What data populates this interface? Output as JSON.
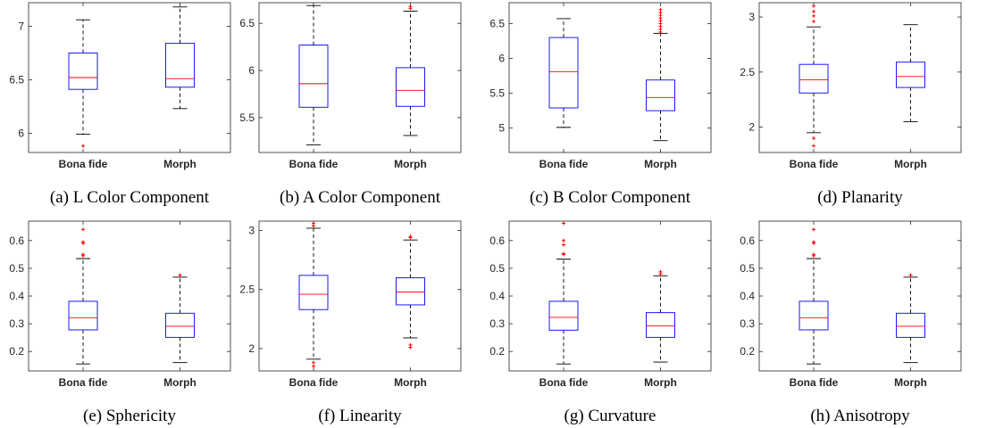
{
  "chart_data": [
    {
      "type": "box",
      "caption": "(a) L Color Component",
      "categories": [
        "Bona fide",
        "Morph"
      ],
      "ylim": [
        5.82,
        7.22
      ],
      "yticks": [
        6,
        6.5,
        7
      ],
      "ytick_labels": [
        "6",
        "6.5",
        "7"
      ],
      "boxes": [
        {
          "whisker_low": 5.99,
          "q1": 6.41,
          "median": 6.52,
          "q3": 6.75,
          "whisker_high": 7.06,
          "outliers": [
            5.88
          ]
        },
        {
          "whisker_low": 6.23,
          "q1": 6.43,
          "median": 6.51,
          "q3": 6.84,
          "whisker_high": 7.18,
          "outliers": []
        }
      ]
    },
    {
      "type": "box",
      "caption": "(b) A Color Component",
      "categories": [
        "Bona fide",
        "Morph"
      ],
      "ylim": [
        5.13,
        6.72
      ],
      "yticks": [
        5.5,
        6,
        6.5
      ],
      "ytick_labels": [
        "5.5",
        "6",
        "6.5"
      ],
      "boxes": [
        {
          "whisker_low": 5.21,
          "q1": 5.61,
          "median": 5.86,
          "q3": 6.27,
          "whisker_high": 6.69,
          "outliers": []
        },
        {
          "whisker_low": 5.31,
          "q1": 5.62,
          "median": 5.79,
          "q3": 6.03,
          "whisker_high": 6.63,
          "outliers": [
            6.66,
            6.68
          ]
        }
      ]
    },
    {
      "type": "box",
      "caption": "(c) B Color Component",
      "categories": [
        "Bona fide",
        "Morph"
      ],
      "ylim": [
        4.65,
        6.8
      ],
      "yticks": [
        5,
        5.5,
        6,
        6.5
      ],
      "ytick_labels": [
        "5",
        "5.5",
        "6",
        "6.5"
      ],
      "boxes": [
        {
          "whisker_low": 5.01,
          "q1": 5.29,
          "median": 5.81,
          "q3": 6.3,
          "whisker_high": 6.57,
          "outliers": []
        },
        {
          "whisker_low": 4.82,
          "q1": 5.25,
          "median": 5.44,
          "q3": 5.69,
          "whisker_high": 6.36,
          "outliers": [
            6.38,
            6.42,
            6.46,
            6.5,
            6.54,
            6.58,
            6.62,
            6.66,
            6.7
          ]
        }
      ]
    },
    {
      "type": "box",
      "caption": "(d) Planarity",
      "categories": [
        "Bona fide",
        "Morph"
      ],
      "ylim": [
        1.77,
        3.13
      ],
      "yticks": [
        2,
        2.5,
        3
      ],
      "ytick_labels": [
        "2",
        "2.5",
        "3"
      ],
      "boxes": [
        {
          "whisker_low": 1.95,
          "q1": 2.31,
          "median": 2.43,
          "q3": 2.57,
          "whisker_high": 2.91,
          "outliers": [
            1.83,
            1.9,
            2.96,
            3.01,
            3.05,
            3.1
          ]
        },
        {
          "whisker_low": 2.05,
          "q1": 2.36,
          "median": 2.46,
          "q3": 2.59,
          "whisker_high": 2.93,
          "outliers": []
        }
      ]
    },
    {
      "type": "box",
      "caption": "(e) Sphericity",
      "categories": [
        "Bona fide",
        "Morph"
      ],
      "ylim": [
        0.13,
        0.67
      ],
      "yticks": [
        0.2,
        0.3,
        0.4,
        0.5,
        0.6
      ],
      "ytick_labels": [
        "0.2",
        "0.3",
        "0.4",
        "0.5",
        "0.6"
      ],
      "boxes": [
        {
          "whisker_low": 0.155,
          "q1": 0.278,
          "median": 0.322,
          "q3": 0.381,
          "whisker_high": 0.535,
          "outliers": [
            0.545,
            0.55,
            0.59,
            0.595,
            0.64
          ]
        },
        {
          "whisker_low": 0.16,
          "q1": 0.251,
          "median": 0.291,
          "q3": 0.338,
          "whisker_high": 0.468,
          "outliers": [
            0.475
          ]
        }
      ]
    },
    {
      "type": "box",
      "caption": "(f) Linearity",
      "categories": [
        "Bona fide",
        "Morph"
      ],
      "ylim": [
        1.81,
        3.08
      ],
      "yticks": [
        2,
        2.5,
        3
      ],
      "ytick_labels": [
        "2",
        "2.5",
        "3"
      ],
      "boxes": [
        {
          "whisker_low": 1.91,
          "q1": 2.33,
          "median": 2.46,
          "q3": 2.62,
          "whisker_high": 3.02,
          "outliers": [
            1.85,
            1.88,
            3.04,
            3.06
          ]
        },
        {
          "whisker_low": 2.09,
          "q1": 2.37,
          "median": 2.48,
          "q3": 2.6,
          "whisker_high": 2.92,
          "outliers": [
            2.01,
            2.03,
            2.94,
            2.95
          ]
        }
      ]
    },
    {
      "type": "box",
      "caption": "(g) Curvature",
      "categories": [
        "Bona fide",
        "Morph"
      ],
      "ylim": [
        0.13,
        0.67
      ],
      "yticks": [
        0.2,
        0.3,
        0.4,
        0.5,
        0.6
      ],
      "ytick_labels": [
        "0.2",
        "0.3",
        "0.4",
        "0.5",
        "0.6"
      ],
      "boxes": [
        {
          "whisker_low": 0.155,
          "q1": 0.277,
          "median": 0.323,
          "q3": 0.381,
          "whisker_high": 0.533,
          "outliers": [
            0.55,
            0.553,
            0.585,
            0.6,
            0.662
          ]
        },
        {
          "whisker_low": 0.162,
          "q1": 0.251,
          "median": 0.292,
          "q3": 0.34,
          "whisker_high": 0.473,
          "outliers": [
            0.48,
            0.487
          ]
        }
      ]
    },
    {
      "type": "box",
      "caption": "(h) Anisotropy",
      "categories": [
        "Bona fide",
        "Morph"
      ],
      "ylim": [
        0.13,
        0.67
      ],
      "yticks": [
        0.2,
        0.3,
        0.4,
        0.5,
        0.6
      ],
      "ytick_labels": [
        "0.2",
        "0.3",
        "0.4",
        "0.5",
        "0.6"
      ],
      "boxes": [
        {
          "whisker_low": 0.155,
          "q1": 0.278,
          "median": 0.322,
          "q3": 0.381,
          "whisker_high": 0.535,
          "outliers": [
            0.545,
            0.55,
            0.59,
            0.595,
            0.64
          ]
        },
        {
          "whisker_low": 0.16,
          "q1": 0.251,
          "median": 0.291,
          "q3": 0.338,
          "whisker_high": 0.468,
          "outliers": [
            0.475
          ]
        }
      ]
    }
  ],
  "style": {
    "box_color": "#0000ff",
    "median_color": "#ff0000",
    "whisker_color": "#000000",
    "outlier_color": "#ff0000",
    "axis_color": "#262626"
  }
}
